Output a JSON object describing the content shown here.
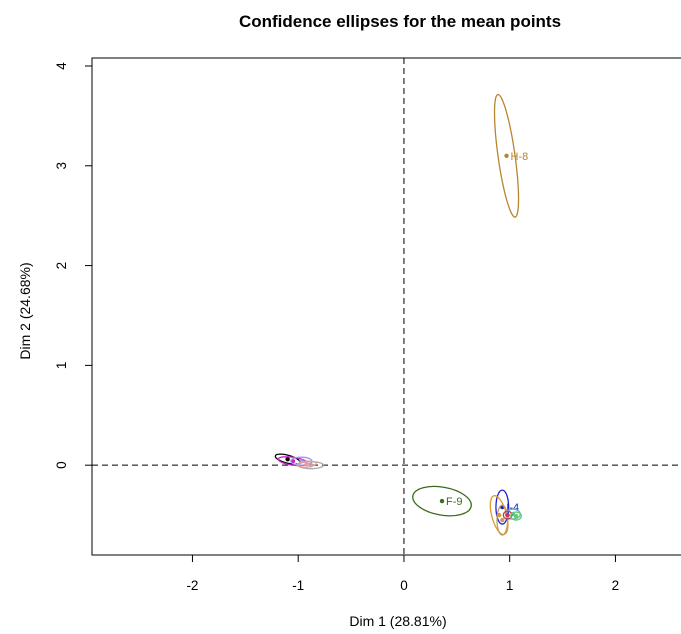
{
  "chart_data": {
    "type": "scatter",
    "title": "Confidence ellipses for the mean points",
    "xlabel": "Dim 1 (28.81%)",
    "ylabel": "Dim 2 (24.68%)",
    "xlim": [
      -2.95,
      2.62
    ],
    "ylim": [
      -0.9,
      4.08
    ],
    "xticks": [
      -2,
      -1,
      0,
      1,
      2
    ],
    "yticks": [
      0,
      1,
      2,
      3,
      4
    ],
    "grid": false,
    "reference_lines": {
      "x": 0,
      "y": 0,
      "style": "dashed"
    },
    "points": [
      {
        "label": "H-8",
        "x": 0.97,
        "y": 3.1,
        "color": "#b8862f",
        "ellipse": {
          "rx": 0.08,
          "ry": 0.62,
          "rotation_deg": 8
        }
      },
      {
        "label": "F-9",
        "x": 0.36,
        "y": -0.36,
        "color": "#3a6b1f",
        "ellipse": {
          "rx": 0.28,
          "ry": 0.14,
          "rotation_deg": -10
        }
      },
      {
        "label": "I-4",
        "x": 0.93,
        "y": -0.42,
        "color": "#2222cc",
        "ellipse": {
          "rx": 0.06,
          "ry": 0.17,
          "rotation_deg": 0
        }
      },
      {
        "label": "",
        "x": 0.9,
        "y": -0.5,
        "color": "#d99a2b",
        "ellipse": {
          "rx": 0.07,
          "ry": 0.2,
          "rotation_deg": 15
        }
      },
      {
        "label": "",
        "x": 0.93,
        "y": -0.55,
        "color": "#c0a060",
        "ellipse": {
          "rx": 0.05,
          "ry": 0.15,
          "rotation_deg": 0
        }
      },
      {
        "label": "",
        "x": 1.03,
        "y": -0.49,
        "color": "#4ec0c0",
        "ellipse": {
          "rx": 0.07,
          "ry": 0.05,
          "rotation_deg": 0
        }
      },
      {
        "label": "",
        "x": 0.98,
        "y": -0.5,
        "color": "#cc3355",
        "ellipse": {
          "rx": 0.04,
          "ry": 0.04,
          "rotation_deg": 0
        }
      },
      {
        "label": "",
        "x": 1.06,
        "y": -0.51,
        "color": "#66cc66",
        "ellipse": {
          "rx": 0.05,
          "ry": 0.04,
          "rotation_deg": 0
        }
      },
      {
        "label": "",
        "x": -1.1,
        "y": 0.06,
        "color": "#000000",
        "ellipse": {
          "rx": 0.12,
          "ry": 0.04,
          "rotation_deg": -15
        }
      },
      {
        "label": "",
        "x": -1.05,
        "y": 0.04,
        "color": "#cc22cc",
        "ellipse": {
          "rx": 0.14,
          "ry": 0.04,
          "rotation_deg": -8
        }
      },
      {
        "label": "",
        "x": -0.97,
        "y": 0.04,
        "color": "#9999ee",
        "ellipse": {
          "rx": 0.1,
          "ry": 0.04,
          "rotation_deg": 0
        }
      },
      {
        "label": "",
        "x": -0.88,
        "y": 0.0,
        "color": "#aaaaaa",
        "ellipse": {
          "rx": 0.12,
          "ry": 0.035,
          "rotation_deg": 0
        }
      },
      {
        "label": "",
        "x": -0.92,
        "y": 0.01,
        "color": "#ee9999",
        "ellipse": {
          "rx": 0.09,
          "ry": 0.03,
          "rotation_deg": 5
        }
      }
    ]
  }
}
